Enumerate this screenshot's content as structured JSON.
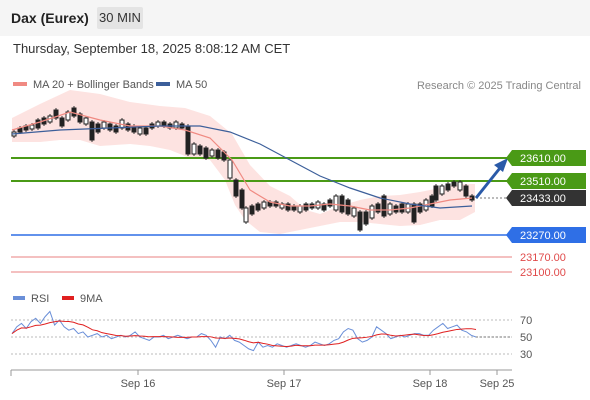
{
  "header": {
    "title": "Dax (Eurex)",
    "timeframe": "30 MIN"
  },
  "date_line": "Thursday, September 18, 2025 8:08:12 AM CET",
  "legend": {
    "items": [
      {
        "label": "MA 20 + Bollinger Bands",
        "color": "#f08a82"
      },
      {
        "label": "MA 50",
        "color": "#3c5f9a"
      }
    ],
    "credit": "Research © 2025 Trading Central"
  },
  "rsi_legend": {
    "items": [
      {
        "label": "RSI",
        "color": "#6a8fd8"
      },
      {
        "label": "9MA",
        "color": "#e02020"
      }
    ]
  },
  "chart_data": [
    {
      "type": "candlestick",
      "x_ticks": [
        "Sep 16",
        "Sep 17",
        "Sep 18",
        "Sep 25"
      ],
      "levels": [
        {
          "value": "23610.00",
          "style": "green-line",
          "color": "#4a9a16"
        },
        {
          "value": "23510.00",
          "style": "green-line",
          "color": "#4a9a16"
        },
        {
          "value": "23433.00",
          "style": "current-price",
          "color": "#333333"
        },
        {
          "value": "23270.00",
          "style": "blue-line",
          "color": "#2f6fe6"
        },
        {
          "value": "23170.00",
          "style": "red-line",
          "color": "#e04a4a"
        },
        {
          "value": "23100.00",
          "style": "red-line",
          "color": "#e04a4a"
        }
      ],
      "projection": {
        "from": 23433,
        "to": 23610,
        "color": "#2a5aa8"
      }
    },
    {
      "type": "line",
      "series": [
        {
          "name": "RSI"
        },
        {
          "name": "9MA"
        }
      ],
      "y_ticks": [
        "70",
        "50",
        "30"
      ],
      "ylim": [
        20,
        80
      ]
    }
  ]
}
